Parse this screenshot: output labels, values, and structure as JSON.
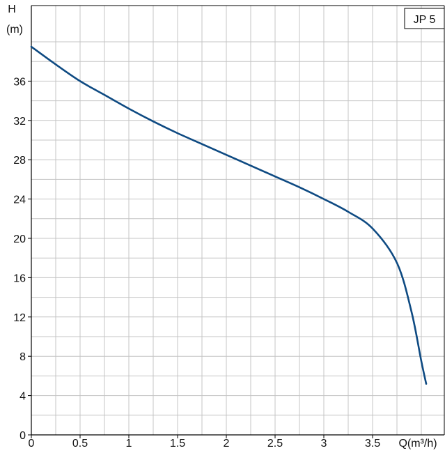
{
  "chart_data": {
    "type": "line",
    "title": "",
    "ylabel_top": "H",
    "ylabel_unit": "(m)",
    "xlabel": "Q(m³/h)",
    "xlim": [
      0,
      4.1
    ],
    "ylim": [
      0,
      40
    ],
    "x_ticks": [
      {
        "value": 0,
        "label": "0"
      },
      {
        "value": 0.5,
        "label": "0.5"
      },
      {
        "value": 1,
        "label": "1"
      },
      {
        "value": 1.5,
        "label": "1.5"
      },
      {
        "value": 2,
        "label": "2"
      },
      {
        "value": 2.5,
        "label": "2.5"
      },
      {
        "value": 3,
        "label": "3"
      },
      {
        "value": 3.5,
        "label": "3.5"
      }
    ],
    "y_ticks": [
      {
        "value": 0,
        "label": "0"
      },
      {
        "value": 4,
        "label": "4"
      },
      {
        "value": 8,
        "label": "8"
      },
      {
        "value": 12,
        "label": "12"
      },
      {
        "value": 16,
        "label": "16"
      },
      {
        "value": 20,
        "label": "20"
      },
      {
        "value": 24,
        "label": "24"
      },
      {
        "value": 28,
        "label": "28"
      },
      {
        "value": 32,
        "label": "32"
      },
      {
        "value": 36,
        "label": "36"
      }
    ],
    "x_minor_step": 0.25,
    "y_minor_step": 2,
    "grid": true,
    "legend": {
      "label": "JP 5",
      "placement": "top-right"
    },
    "colors": {
      "series": "#0e4a82",
      "grid": "#c4c4c4",
      "axis": "#000000"
    },
    "series": [
      {
        "values": [
          {
            "x": 0.0,
            "y": 39.5
          },
          {
            "x": 0.25,
            "y": 37.7
          },
          {
            "x": 0.5,
            "y": 36.0
          },
          {
            "x": 0.75,
            "y": 34.6
          },
          {
            "x": 1.0,
            "y": 33.2
          },
          {
            "x": 1.25,
            "y": 31.9
          },
          {
            "x": 1.5,
            "y": 30.7
          },
          {
            "x": 1.75,
            "y": 29.6
          },
          {
            "x": 2.0,
            "y": 28.5
          },
          {
            "x": 2.25,
            "y": 27.4
          },
          {
            "x": 2.5,
            "y": 26.3
          },
          {
            "x": 2.75,
            "y": 25.2
          },
          {
            "x": 3.0,
            "y": 24.0
          },
          {
            "x": 3.25,
            "y": 22.7
          },
          {
            "x": 3.5,
            "y": 21.0
          },
          {
            "x": 3.75,
            "y": 17.5
          },
          {
            "x": 3.9,
            "y": 12.5
          },
          {
            "x": 4.0,
            "y": 7.5
          },
          {
            "x": 4.05,
            "y": 5.2
          }
        ]
      }
    ]
  }
}
